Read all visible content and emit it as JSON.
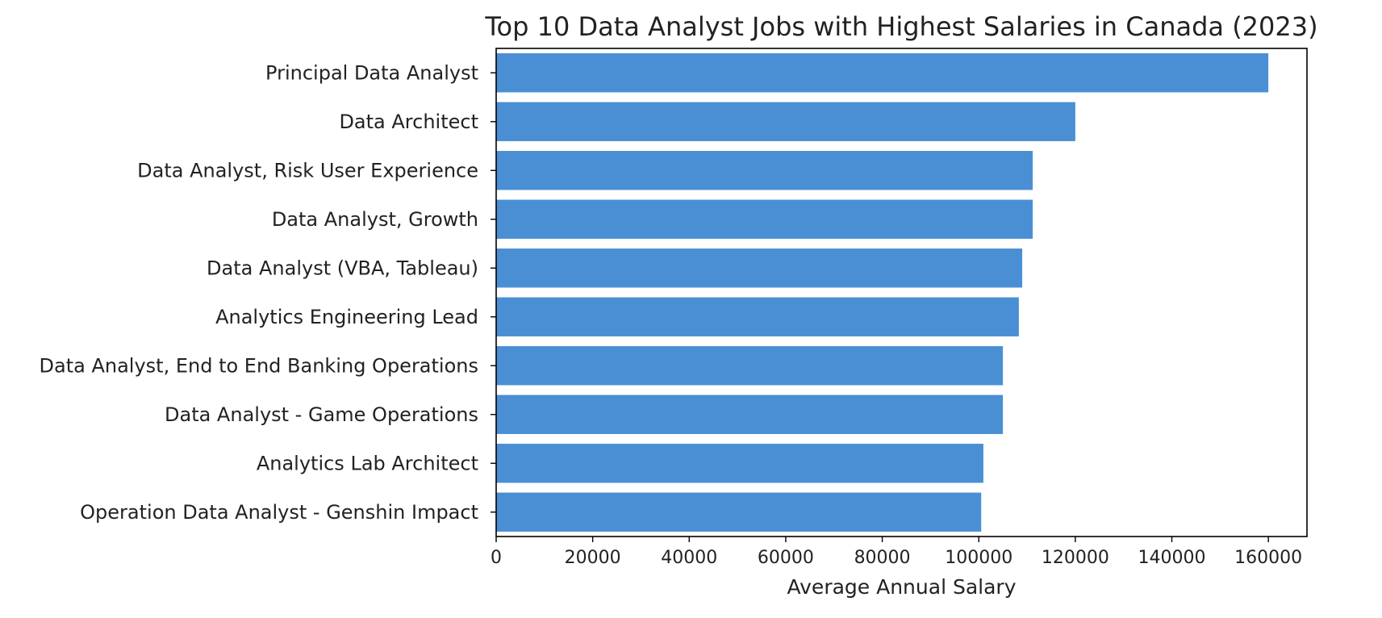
{
  "chart_data": {
    "type": "bar",
    "orientation": "horizontal",
    "title": "Top 10 Data Analyst Jobs with Highest Salaries in Canada (2023)",
    "xlabel": "Average Annual Salary",
    "ylabel": "",
    "xlim": [
      0,
      168000
    ],
    "x_ticks": [
      0,
      20000,
      40000,
      60000,
      80000,
      100000,
      120000,
      140000,
      160000
    ],
    "grid": false,
    "legend": "none",
    "bar_color": "#4a8fd4",
    "categories": [
      "Principal Data Analyst",
      "Data Architect",
      "Data Analyst, Risk User Experience",
      "Data Analyst, Growth",
      "Data Analyst (VBA, Tableau)",
      "Analytics Engineering Lead",
      "Data Analyst, End to End Banking Operations",
      "Data Analyst - Game Operations",
      "Analytics Lab Architect",
      "Operation Data Analyst - Genshin Impact"
    ],
    "values": [
      160000,
      120000,
      111175,
      111175,
      109000,
      108300,
      105000,
      105000,
      100950,
      100500
    ]
  }
}
